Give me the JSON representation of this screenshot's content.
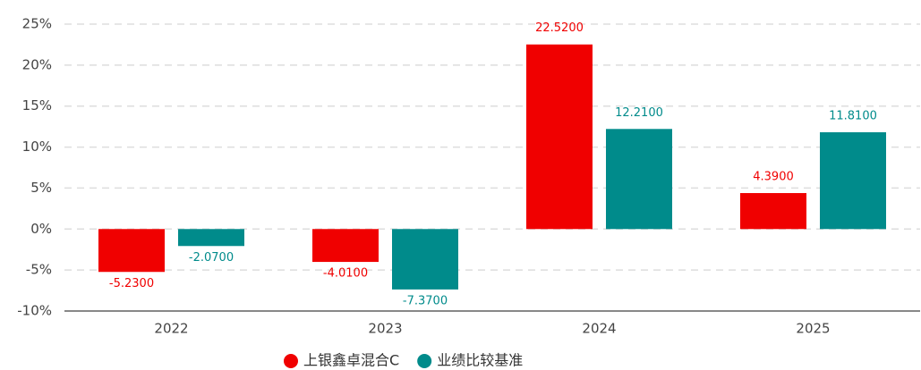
{
  "chart_data": {
    "type": "bar",
    "categories": [
      "2022",
      "2023",
      "2024",
      "2025"
    ],
    "series": [
      {
        "name": "上银鑫卓混合C",
        "color": "#f00000",
        "values": [
          -5.23,
          -4.01,
          22.52,
          4.39
        ],
        "value_labels": [
          "-5.2300",
          "-4.0100",
          "22.5200",
          "4.3900"
        ]
      },
      {
        "name": "业绩比较基准",
        "color": "#008b8b",
        "values": [
          -2.07,
          -7.37,
          12.21,
          11.81
        ],
        "value_labels": [
          "-2.0700",
          "-7.3700",
          "12.2100",
          "11.8100"
        ]
      }
    ],
    "ylim": [
      -10,
      25
    ],
    "yticks": [
      {
        "value": -10,
        "label": "-10%"
      },
      {
        "value": -5,
        "label": "-5%"
      },
      {
        "value": 0,
        "label": "0%"
      },
      {
        "value": 5,
        "label": "5%"
      },
      {
        "value": 10,
        "label": "10%"
      },
      {
        "value": 15,
        "label": "15%"
      },
      {
        "value": 20,
        "label": "20%"
      },
      {
        "value": 25,
        "label": "25%"
      }
    ],
    "grid": true,
    "legend": "bottom"
  }
}
